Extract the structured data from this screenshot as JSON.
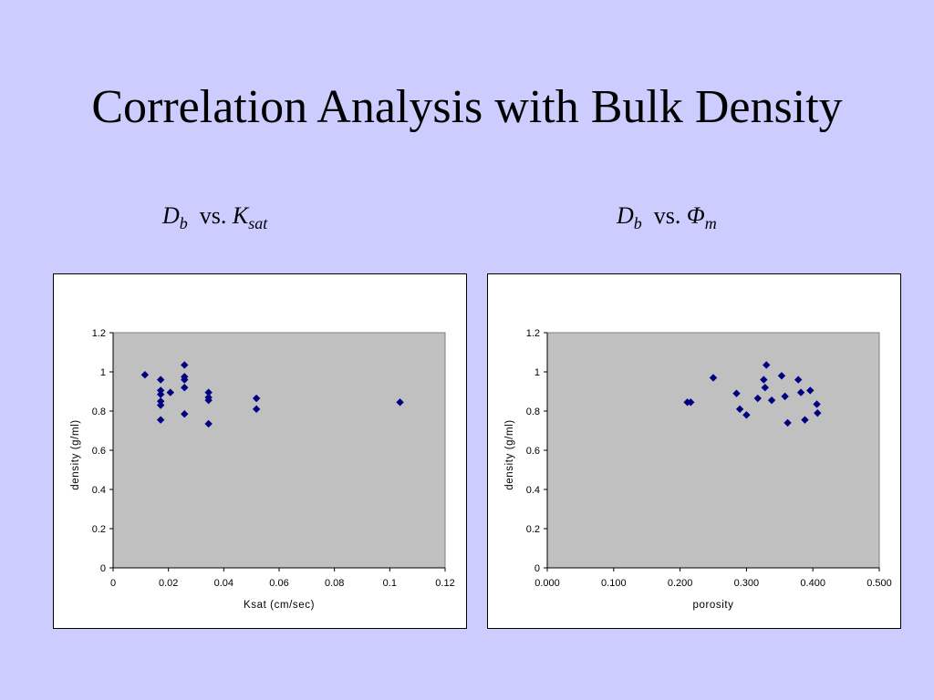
{
  "title": "Correlation Analysis with Bulk Density",
  "subtitles": [
    {
      "main": "D",
      "sub": "b",
      "vs": "vs.",
      "var": "K",
      "var_sub": "sat"
    },
    {
      "main": "D",
      "sub": "b",
      "vs": "vs.",
      "var": "Φ",
      "var_sub": "m"
    }
  ],
  "colors": {
    "background": "#ccccff",
    "plot_area": "#c0c0c0",
    "marker": "#000080"
  },
  "chart_data": [
    {
      "type": "scatter",
      "title": "",
      "xlabel": "Ksat (cm/sec)",
      "ylabel": "density (g/ml)",
      "xlim": [
        0,
        0.12
      ],
      "ylim": [
        0,
        1.2
      ],
      "xticks": [
        "0",
        "0.02",
        "0.04",
        "0.06",
        "0.08",
        "0.1",
        "0.12"
      ],
      "xtick_values": [
        0,
        0.02,
        0.04,
        0.06,
        0.08,
        0.1,
        0.12
      ],
      "yticks": [
        "0",
        "0.2",
        "0.4",
        "0.6",
        "0.8",
        "1",
        "1.2"
      ],
      "ytick_values": [
        0,
        0.2,
        0.4,
        0.6,
        0.8,
        1.0,
        1.2
      ],
      "grid": false,
      "legend": false,
      "points": [
        {
          "x": 0.0115,
          "y": 0.985
        },
        {
          "x": 0.0172,
          "y": 0.96
        },
        {
          "x": 0.0172,
          "y": 0.905
        },
        {
          "x": 0.0172,
          "y": 0.885
        },
        {
          "x": 0.0172,
          "y": 0.85
        },
        {
          "x": 0.0172,
          "y": 0.83
        },
        {
          "x": 0.0172,
          "y": 0.755
        },
        {
          "x": 0.0207,
          "y": 0.895
        },
        {
          "x": 0.0258,
          "y": 1.035
        },
        {
          "x": 0.0258,
          "y": 0.975
        },
        {
          "x": 0.0258,
          "y": 0.96
        },
        {
          "x": 0.0258,
          "y": 0.92
        },
        {
          "x": 0.0258,
          "y": 0.785
        },
        {
          "x": 0.0345,
          "y": 0.895
        },
        {
          "x": 0.0345,
          "y": 0.87
        },
        {
          "x": 0.0345,
          "y": 0.855
        },
        {
          "x": 0.0345,
          "y": 0.735
        },
        {
          "x": 0.0518,
          "y": 0.865
        },
        {
          "x": 0.0518,
          "y": 0.81
        },
        {
          "x": 0.1037,
          "y": 0.845
        }
      ]
    },
    {
      "type": "scatter",
      "title": "",
      "xlabel": "porosity",
      "ylabel": "density (g/ml)",
      "xlim": [
        0,
        0.5
      ],
      "ylim": [
        0,
        1.2
      ],
      "xticks": [
        "0.000",
        "0.100",
        "0.200",
        "0.300",
        "0.400",
        "0.500"
      ],
      "xtick_values": [
        0,
        0.1,
        0.2,
        0.3,
        0.4,
        0.5
      ],
      "yticks": [
        "0",
        "0.2",
        "0.4",
        "0.6",
        "0.8",
        "1",
        "1.2"
      ],
      "ytick_values": [
        0,
        0.2,
        0.4,
        0.6,
        0.8,
        1.0,
        1.2
      ],
      "grid": false,
      "legend": false,
      "points": [
        {
          "x": 0.211,
          "y": 0.845
        },
        {
          "x": 0.216,
          "y": 0.845
        },
        {
          "x": 0.25,
          "y": 0.97
        },
        {
          "x": 0.285,
          "y": 0.89
        },
        {
          "x": 0.29,
          "y": 0.81
        },
        {
          "x": 0.3,
          "y": 0.78
        },
        {
          "x": 0.317,
          "y": 0.865
        },
        {
          "x": 0.326,
          "y": 0.96
        },
        {
          "x": 0.328,
          "y": 0.92
        },
        {
          "x": 0.33,
          "y": 1.035
        },
        {
          "x": 0.338,
          "y": 0.855
        },
        {
          "x": 0.353,
          "y": 0.98
        },
        {
          "x": 0.358,
          "y": 0.875
        },
        {
          "x": 0.362,
          "y": 0.74
        },
        {
          "x": 0.378,
          "y": 0.96
        },
        {
          "x": 0.382,
          "y": 0.895
        },
        {
          "x": 0.388,
          "y": 0.755
        },
        {
          "x": 0.396,
          "y": 0.905
        },
        {
          "x": 0.406,
          "y": 0.835
        },
        {
          "x": 0.407,
          "y": 0.79
        }
      ]
    }
  ]
}
